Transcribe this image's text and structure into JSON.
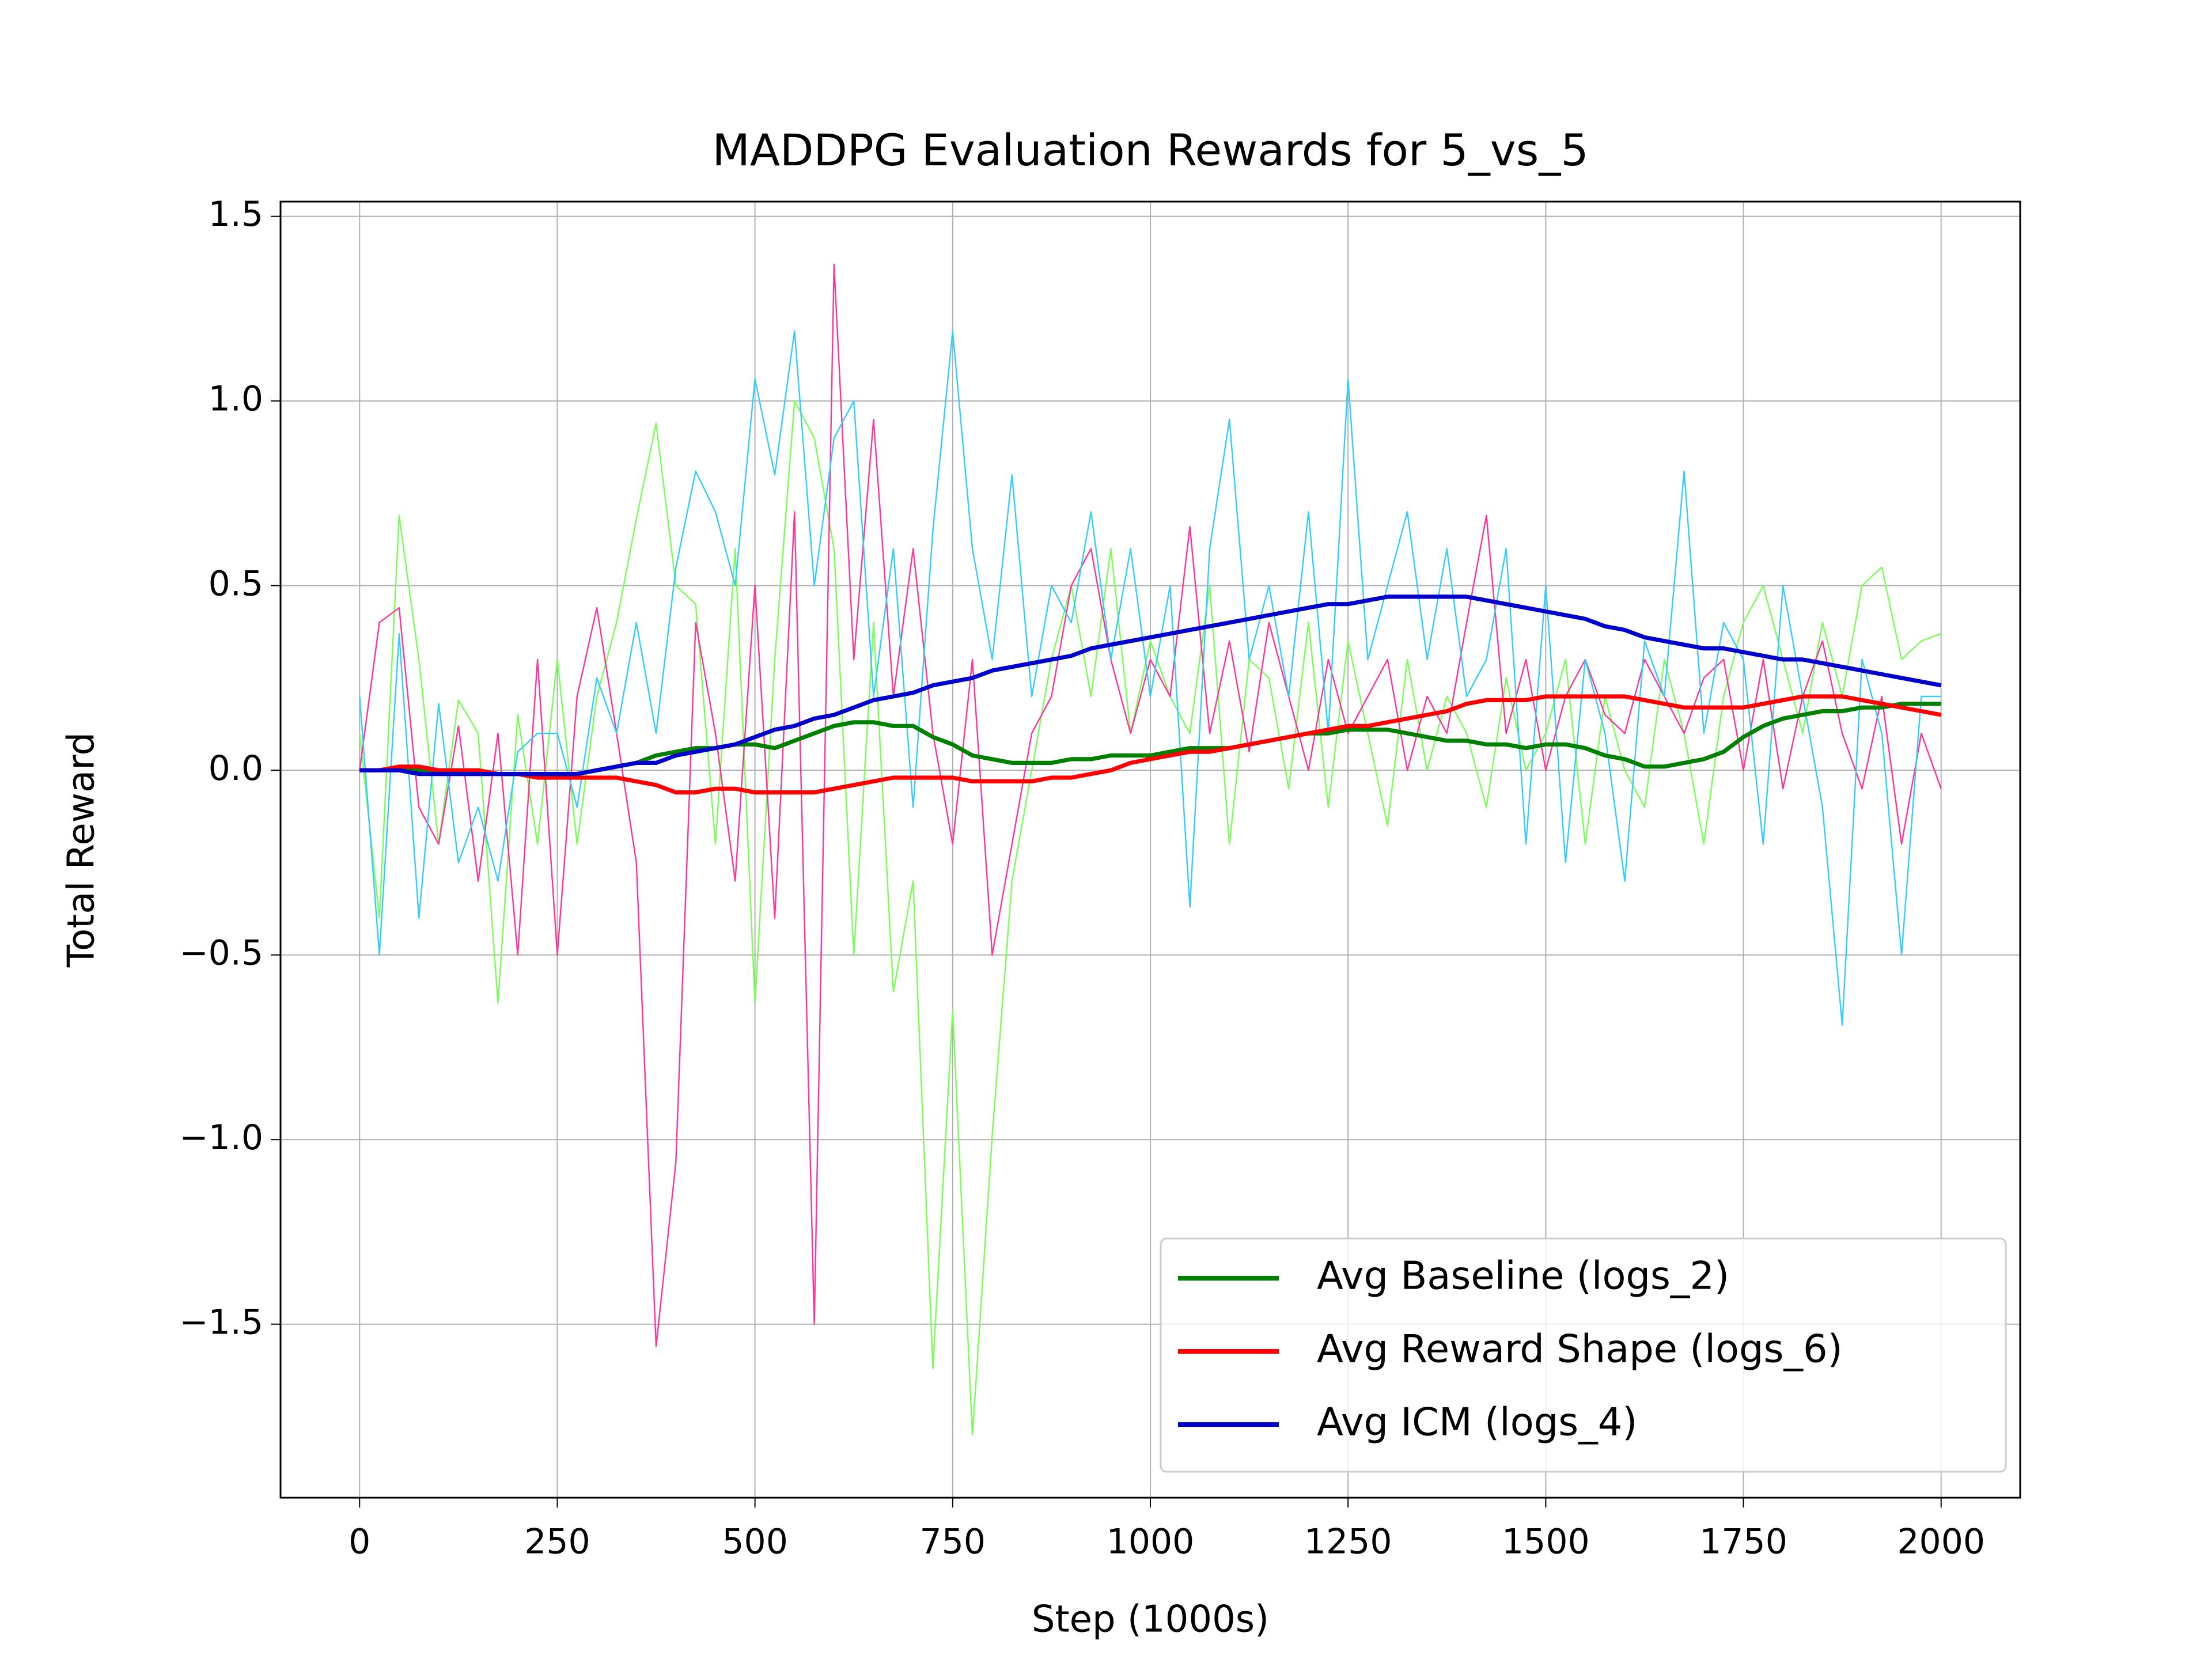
{
  "chart_data": {
    "type": "line",
    "title": "MADDPG Evaluation Rewards for 5_vs_5",
    "x_label": "Step (1000s)",
    "y_label": "Total Reward",
    "x": [
      0,
      25,
      50,
      75,
      100,
      125,
      150,
      175,
      200,
      225,
      250,
      275,
      300,
      325,
      350,
      375,
      400,
      425,
      450,
      475,
      500,
      525,
      550,
      575,
      600,
      625,
      650,
      675,
      700,
      725,
      750,
      775,
      800,
      825,
      850,
      875,
      900,
      925,
      950,
      975,
      1000,
      1025,
      1050,
      1075,
      1100,
      1125,
      1150,
      1175,
      1200,
      1225,
      1250,
      1275,
      1300,
      1325,
      1350,
      1375,
      1400,
      1425,
      1450,
      1475,
      1500,
      1525,
      1550,
      1575,
      1600,
      1625,
      1650,
      1675,
      1700,
      1725,
      1750,
      1775,
      1800,
      1825,
      1850,
      1875,
      1900,
      1925,
      1950,
      1975,
      2000
    ],
    "xlim": [
      -100,
      2100
    ],
    "ylim": [
      -1.97,
      1.54
    ],
    "xticks": [
      0,
      250,
      500,
      750,
      1000,
      1250,
      1500,
      1750,
      2000
    ],
    "yticks": [
      {
        "value": -1.5,
        "label": "−1.5"
      },
      {
        "value": -1.0,
        "label": "−1.0"
      },
      {
        "value": -0.5,
        "label": "−0.5"
      },
      {
        "value": 0,
        "label": "0.0"
      },
      0.5,
      {
        "value": 1.0,
        "label": "1.0"
      },
      1.5
    ],
    "grid": true,
    "legend": "lower right",
    "series": [
      {
        "color": "#77ff55",
        "width": 1,
        "values": [
          0.1,
          -0.4,
          0.69,
          0.3,
          -0.2,
          0.19,
          0.1,
          -0.63,
          0.15,
          -0.2,
          0.3,
          -0.2,
          0.2,
          0.4,
          0.68,
          0.94,
          0.5,
          0.45,
          -0.2,
          0.6,
          -0.63,
          0.3,
          1.0,
          0.9,
          0.6,
          -0.5,
          0.4,
          -0.6,
          -0.3,
          -1.62,
          -0.65,
          -1.8,
          -0.99,
          -0.3,
          0.0,
          0.3,
          0.5,
          0.2,
          0.6,
          0.1,
          0.35,
          0.2,
          0.1,
          0.5,
          -0.2,
          0.3,
          0.25,
          -0.05,
          0.4,
          -0.1,
          0.35,
          0.1,
          -0.15,
          0.3,
          0.0,
          0.2,
          0.1,
          -0.1,
          0.25,
          0.0,
          0.1,
          0.3,
          -0.2,
          0.2,
          0.0,
          -0.1,
          0.3,
          0.1,
          -0.2,
          0.2,
          0.4,
          0.5,
          0.3,
          0.1,
          0.4,
          0.2,
          0.5,
          0.55,
          0.3,
          0.35,
          0.37
        ]
      },
      {
        "color": "#ff3399",
        "width": 1,
        "values": [
          0,
          0.4,
          0.44,
          -0.1,
          -0.2,
          0.12,
          -0.3,
          0.1,
          -0.5,
          0.3,
          -0.5,
          0.2,
          0.44,
          0.1,
          -0.25,
          -1.56,
          -1.06,
          0.4,
          0.1,
          -0.3,
          0.5,
          -0.4,
          0.7,
          -1.5,
          1.37,
          0.3,
          0.95,
          0.2,
          0.6,
          0.1,
          -0.2,
          0.3,
          -0.5,
          -0.2,
          0.1,
          0.2,
          0.5,
          0.6,
          0.3,
          0.1,
          0.3,
          0.2,
          0.66,
          0.1,
          0.35,
          0.05,
          0.4,
          0.2,
          0.0,
          0.3,
          0.1,
          0.2,
          0.3,
          0.0,
          0.2,
          0.1,
          0.4,
          0.69,
          0.1,
          0.3,
          0.0,
          0.2,
          0.3,
          0.15,
          0.1,
          0.3,
          0.2,
          0.1,
          0.25,
          0.3,
          0.0,
          0.3,
          -0.05,
          0.2,
          0.35,
          0.1,
          -0.05,
          0.2,
          -0.2,
          0.1,
          -0.05
        ]
      },
      {
        "color": "#33ccff",
        "width": 1,
        "values": [
          0.2,
          -0.5,
          0.37,
          -0.4,
          0.18,
          -0.25,
          -0.1,
          -0.3,
          0.05,
          0.1,
          0.1,
          -0.1,
          0.25,
          0.1,
          0.4,
          0.1,
          0.55,
          0.81,
          0.7,
          0.5,
          1.06,
          0.8,
          1.19,
          0.5,
          0.9,
          1.0,
          0.2,
          0.6,
          -0.1,
          0.65,
          1.19,
          0.6,
          0.3,
          0.8,
          0.2,
          0.5,
          0.4,
          0.7,
          0.3,
          0.6,
          0.2,
          0.5,
          -0.37,
          0.6,
          0.95,
          0.3,
          0.5,
          0.2,
          0.7,
          0.1,
          1.06,
          0.3,
          0.5,
          0.7,
          0.3,
          0.6,
          0.2,
          0.3,
          0.6,
          -0.2,
          0.5,
          -0.25,
          0.3,
          0.1,
          -0.3,
          0.35,
          0.2,
          0.81,
          0.1,
          0.4,
          0.3,
          -0.2,
          0.5,
          0.2,
          -0.1,
          -0.69,
          0.3,
          0.1,
          -0.5,
          0.2,
          0.2
        ]
      },
      {
        "name": "Avg Baseline (logs_2)",
        "color": "#008000",
        "width": 3,
        "values": [
          0,
          0,
          0,
          0,
          -0.01,
          -0.01,
          -0.01,
          -0.01,
          -0.01,
          -0.01,
          -0.01,
          -0.01,
          0,
          0.01,
          0.02,
          0.04,
          0.05,
          0.06,
          0.06,
          0.07,
          0.07,
          0.06,
          0.08,
          0.1,
          0.12,
          0.13,
          0.13,
          0.12,
          0.12,
          0.09,
          0.07,
          0.04,
          0.03,
          0.02,
          0.02,
          0.02,
          0.03,
          0.03,
          0.04,
          0.04,
          0.04,
          0.05,
          0.06,
          0.06,
          0.06,
          0.07,
          0.08,
          0.09,
          0.1,
          0.1,
          0.11,
          0.11,
          0.11,
          0.1,
          0.09,
          0.08,
          0.08,
          0.07,
          0.07,
          0.06,
          0.07,
          0.07,
          0.06,
          0.04,
          0.03,
          0.01,
          0.01,
          0.02,
          0.03,
          0.05,
          0.09,
          0.12,
          0.14,
          0.15,
          0.16,
          0.16,
          0.17,
          0.17,
          0.18,
          0.18,
          0.18
        ]
      },
      {
        "name": "Avg Reward Shape (logs_6)",
        "color": "#ff0000",
        "width": 3,
        "values": [
          0,
          0,
          0.01,
          0.01,
          0,
          0,
          0,
          -0.01,
          -0.01,
          -0.02,
          -0.02,
          -0.02,
          -0.02,
          -0.02,
          -0.03,
          -0.04,
          -0.06,
          -0.06,
          -0.05,
          -0.05,
          -0.06,
          -0.06,
          -0.06,
          -0.06,
          -0.05,
          -0.04,
          -0.03,
          -0.02,
          -0.02,
          -0.02,
          -0.02,
          -0.03,
          -0.03,
          -0.03,
          -0.03,
          -0.02,
          -0.02,
          -0.01,
          0,
          0.02,
          0.03,
          0.04,
          0.05,
          0.05,
          0.06,
          0.07,
          0.08,
          0.09,
          0.1,
          0.11,
          0.12,
          0.12,
          0.13,
          0.14,
          0.15,
          0.16,
          0.18,
          0.19,
          0.19,
          0.19,
          0.2,
          0.2,
          0.2,
          0.2,
          0.2,
          0.19,
          0.18,
          0.17,
          0.17,
          0.17,
          0.17,
          0.18,
          0.19,
          0.2,
          0.2,
          0.2,
          0.19,
          0.18,
          0.17,
          0.16,
          0.15
        ]
      },
      {
        "name": "Avg ICM (logs_4)",
        "color": "#0000cc",
        "width": 3,
        "values": [
          0,
          0,
          0,
          -0.01,
          -0.01,
          -0.01,
          -0.01,
          -0.01,
          -0.01,
          -0.01,
          -0.01,
          -0.01,
          0,
          0.01,
          0.02,
          0.02,
          0.04,
          0.05,
          0.06,
          0.07,
          0.09,
          0.11,
          0.12,
          0.14,
          0.15,
          0.17,
          0.19,
          0.2,
          0.21,
          0.23,
          0.24,
          0.25,
          0.27,
          0.28,
          0.29,
          0.3,
          0.31,
          0.33,
          0.34,
          0.35,
          0.36,
          0.37,
          0.38,
          0.39,
          0.4,
          0.41,
          0.42,
          0.43,
          0.44,
          0.45,
          0.45,
          0.46,
          0.47,
          0.47,
          0.47,
          0.47,
          0.47,
          0.46,
          0.45,
          0.44,
          0.43,
          0.42,
          0.41,
          0.39,
          0.38,
          0.36,
          0.35,
          0.34,
          0.33,
          0.33,
          0.32,
          0.31,
          0.3,
          0.3,
          0.29,
          0.28,
          0.27,
          0.26,
          0.25,
          0.24,
          0.23
        ]
      }
    ]
  }
}
